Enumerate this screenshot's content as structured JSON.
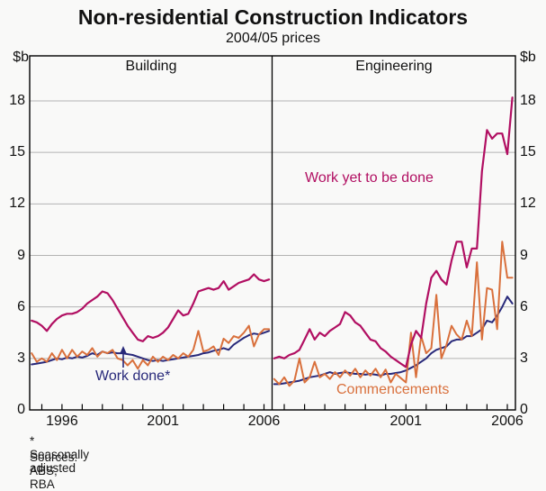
{
  "header": {
    "title": "Non-residential Construction Indicators",
    "subtitle": "2004/05 prices"
  },
  "labels": {
    "work_yet_to_be_done": "Work yet to be done",
    "work_done": "Work done*",
    "commencements": "Commencements"
  },
  "footnotes": {
    "asterisk": "*  Seasonally adjusted",
    "sources": "Sources: ABS; RBA"
  },
  "colors": {
    "work_yet_to_be_done": "#b10f62",
    "work_done": "#28297a",
    "commencements": "#d9703c",
    "gridline": "#b3b3b3",
    "frame": "#000000"
  },
  "chart_data": {
    "type": "line",
    "title": "Non-residential Construction Indicators",
    "subtitle": "2004/05 prices",
    "unit": "$b",
    "ylim": [
      0,
      20.6
    ],
    "yticks": [
      0,
      3,
      6,
      9,
      12,
      15,
      18
    ],
    "gridlines": [
      3,
      6,
      9,
      12,
      15,
      18
    ],
    "x_start": 1994.5,
    "x_step_years": 0.25,
    "x_range": [
      1994.4,
      2006.4
    ],
    "legend_position": "inline-annotations",
    "grid": true,
    "panels": [
      {
        "label": "Building",
        "xtick_years": [
          1995,
          1996,
          1997,
          1998,
          1999,
          2000,
          2001,
          2002,
          2003,
          2004,
          2005,
          2006
        ],
        "xtick_labeled_years": [
          1996,
          2001,
          2006
        ],
        "series": [
          {
            "name": "Work yet to be done",
            "color_key": "work_yet_to_be_done",
            "values": [
              5.2,
              5.1,
              4.9,
              4.6,
              5.0,
              5.3,
              5.5,
              5.6,
              5.6,
              5.7,
              5.9,
              6.2,
              6.4,
              6.6,
              6.9,
              6.8,
              6.4,
              5.9,
              5.4,
              4.9,
              4.5,
              4.1,
              4.0,
              4.3,
              4.2,
              4.3,
              4.5,
              4.8,
              5.3,
              5.8,
              5.5,
              5.6,
              6.2,
              6.9,
              7.0,
              7.1,
              7.0,
              7.1,
              7.5,
              7.0,
              7.2,
              7.4,
              7.5,
              7.6,
              7.9,
              7.6,
              7.5,
              7.6
            ]
          },
          {
            "name": "Work done*",
            "color_key": "work_done",
            "values": [
              2.65,
              2.7,
              2.75,
              2.8,
              2.9,
              3.0,
              2.95,
              3.05,
              3.0,
              3.1,
              3.05,
              3.15,
              3.3,
              3.2,
              3.4,
              3.3,
              3.35,
              3.3,
              3.3,
              3.25,
              3.2,
              3.1,
              3.0,
              2.9,
              2.85,
              2.9,
              2.85,
              2.9,
              2.95,
              3.0,
              3.05,
              3.1,
              3.15,
              3.2,
              3.3,
              3.35,
              3.45,
              3.5,
              3.6,
              3.5,
              3.8,
              4.0,
              4.2,
              4.35,
              4.45,
              4.4,
              4.5,
              4.6
            ]
          },
          {
            "name": "Commencements",
            "color_key": "commencements",
            "values": [
              3.3,
              2.8,
              3.0,
              2.8,
              3.3,
              2.9,
              3.5,
              3.0,
              3.5,
              3.1,
              3.4,
              3.2,
              3.6,
              3.1,
              3.4,
              3.3,
              3.5,
              3.0,
              2.9,
              2.6,
              2.9,
              2.4,
              2.9,
              2.6,
              3.1,
              2.8,
              3.1,
              2.9,
              3.2,
              3.0,
              3.3,
              3.1,
              3.5,
              4.6,
              3.4,
              3.5,
              3.7,
              3.2,
              4.15,
              3.9,
              4.3,
              4.2,
              4.5,
              4.9,
              3.7,
              4.4,
              4.7,
              4.7
            ]
          }
        ]
      },
      {
        "label": "Engineering",
        "xtick_years": [
          1995,
          1996,
          1997,
          1998,
          1999,
          2000,
          2001,
          2002,
          2003,
          2004,
          2005,
          2006
        ],
        "xtick_labeled_years": [
          2001,
          2006
        ],
        "series": [
          {
            "name": "Work yet to be done",
            "color_key": "work_yet_to_be_done",
            "values": [
              3.0,
              3.1,
              3.0,
              3.2,
              3.3,
              3.5,
              4.1,
              4.7,
              4.1,
              4.5,
              4.3,
              4.6,
              4.8,
              5.0,
              5.7,
              5.5,
              5.1,
              4.9,
              4.5,
              4.1,
              4.0,
              3.6,
              3.4,
              3.1,
              2.9,
              2.7,
              2.5,
              3.8,
              4.6,
              4.2,
              6.2,
              7.7,
              8.1,
              7.6,
              7.3,
              8.7,
              9.8,
              9.8,
              8.3,
              9.4,
              9.4,
              13.9,
              16.3,
              15.8,
              16.1,
              16.1,
              14.9,
              18.2
            ]
          },
          {
            "name": "Work done*",
            "color_key": "work_done",
            "values": [
              1.5,
              1.5,
              1.55,
              1.6,
              1.65,
              1.7,
              1.8,
              1.9,
              1.95,
              2.0,
              2.1,
              2.2,
              2.1,
              2.15,
              2.2,
              2.15,
              2.1,
              2.1,
              2.05,
              2.1,
              2.05,
              2.0,
              2.1,
              2.1,
              2.15,
              2.2,
              2.3,
              2.45,
              2.6,
              2.8,
              3.0,
              3.3,
              3.5,
              3.6,
              3.7,
              4.0,
              4.1,
              4.1,
              4.3,
              4.3,
              4.5,
              4.7,
              5.2,
              5.1,
              5.5,
              6.0,
              6.6,
              6.2
            ]
          },
          {
            "name": "Commencements",
            "color_key": "commencements",
            "values": [
              1.8,
              1.5,
              1.9,
              1.4,
              1.7,
              3.0,
              1.6,
              1.9,
              2.8,
              1.9,
              2.1,
              1.8,
              2.2,
              1.9,
              2.3,
              2.0,
              2.4,
              1.9,
              2.3,
              2.0,
              2.4,
              1.9,
              2.35,
              1.6,
              2.1,
              1.85,
              1.6,
              4.5,
              1.9,
              4.3,
              3.3,
              3.6,
              6.7,
              3.0,
              3.8,
              4.9,
              4.4,
              4.1,
              5.2,
              4.3,
              8.6,
              4.1,
              7.1,
              7.0,
              4.7,
              9.8,
              7.7,
              7.7
            ]
          }
        ]
      }
    ]
  }
}
